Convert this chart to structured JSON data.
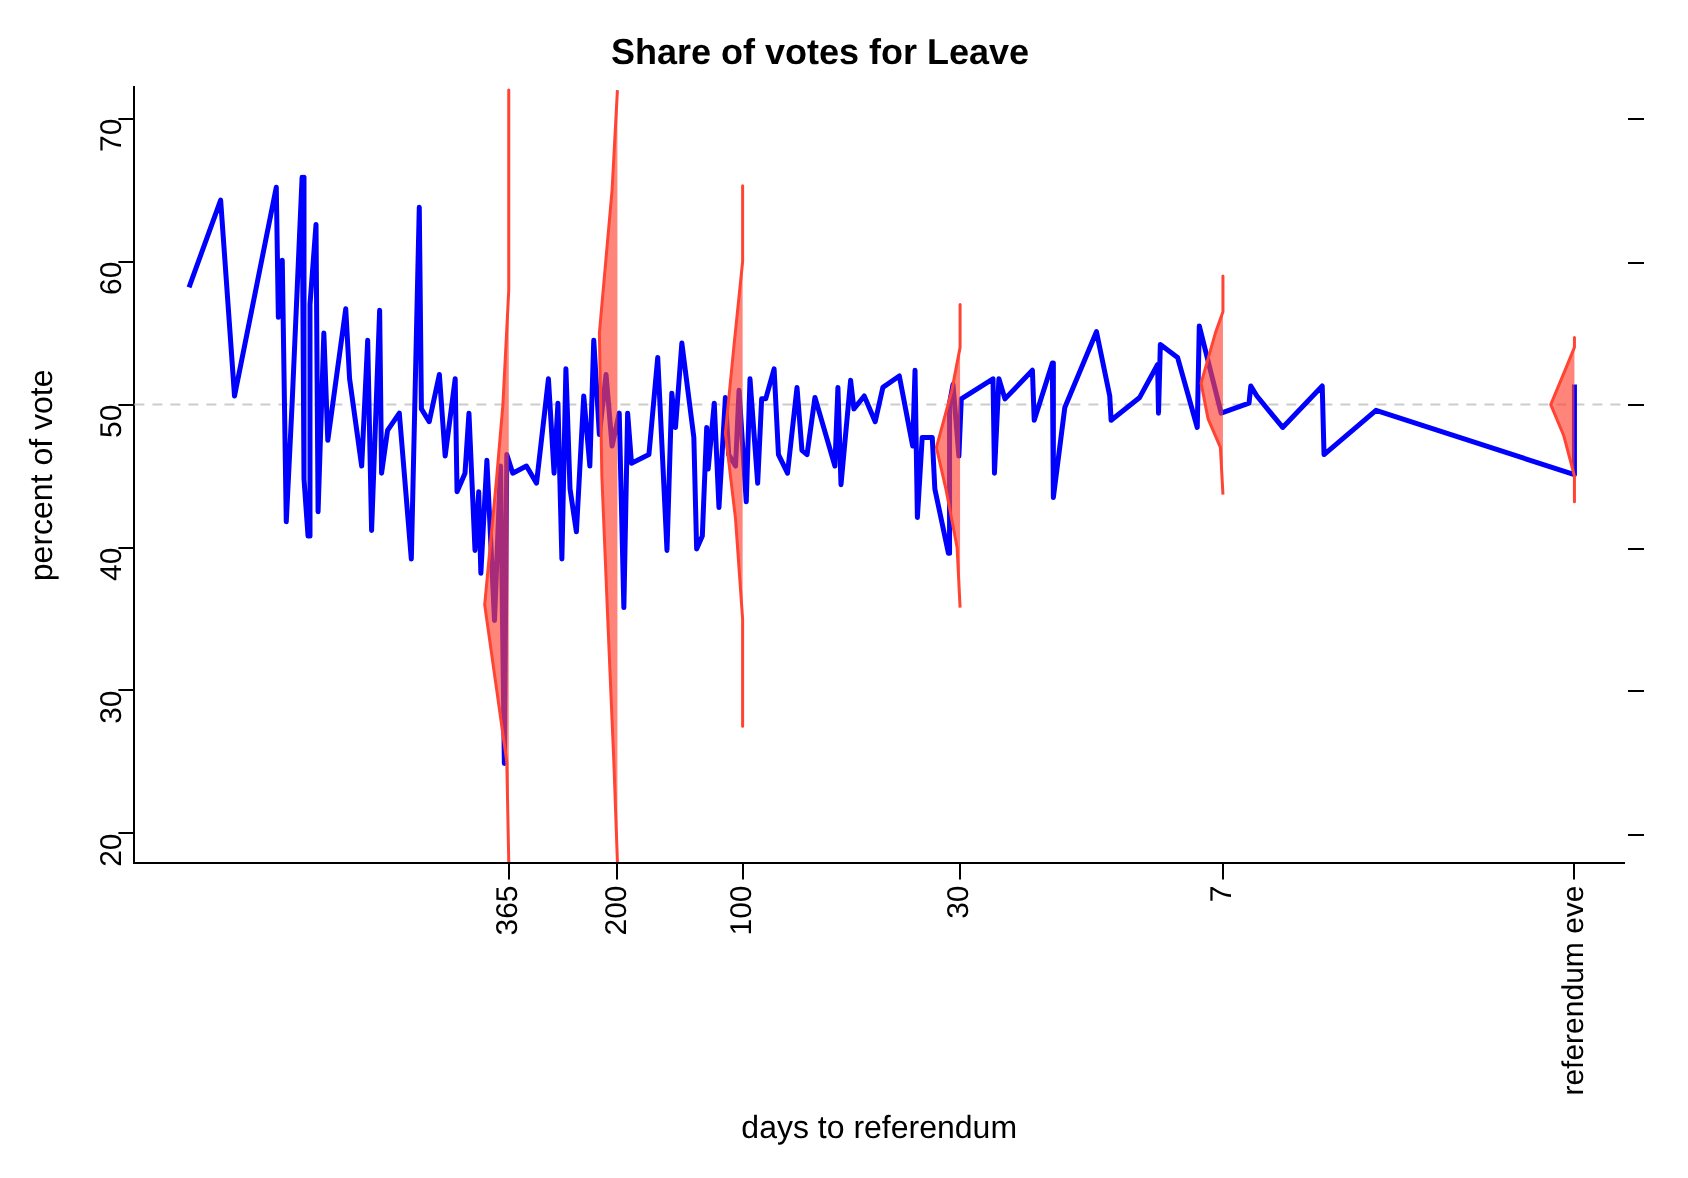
{
  "chart_data": {
    "type": "line",
    "title": "Share of votes for Leave",
    "xlabel": "days to referendum",
    "ylabel": "percent of vote",
    "xlim": [
      2900,
      0.76
    ],
    "xticks": [
      365,
      200,
      100,
      30,
      7,
      {
        "value": 1,
        "label": "referendum eve"
      }
    ],
    "log": "x",
    "ylim": [
      17.9,
      72.2
    ],
    "yticks": [
      20,
      30,
      40,
      50,
      60,
      70
    ],
    "ref_lines": [
      {
        "axis": "y",
        "value": 50,
        "color": "#cccccc",
        "line_style": "dashed"
      }
    ],
    "series": [
      {
        "type": "line",
        "color": "#0000ff",
        "x": [
          2143,
          1799,
          1666,
          1322,
          1307,
          1279,
          1251,
          1211,
          1146,
          1134,
          1109,
          1097,
          1061,
          1049,
          1016,
          994,
          900,
          881,
          824,
          797,
          780,
          746,
          738,
          714,
          669,
          626,
          599,
          592,
          567,
          536,
          519,
          491,
          486,
          465,
          455,
          440,
          431,
          426,
          412,
          395,
          382,
          374,
          369,
          357,
          331,
          313,
          293,
          284,
          278,
          272,
          266,
          260,
          251,
          241,
          233,
          228,
          221,
          213,
          206,
          198,
          193,
          189,
          185,
          168,
          160,
          152,
          148,
          145,
          140,
          131,
          129,
          125,
          122,
          121,
          117,
          114,
          110,
          108,
          104,
          102,
          98,
          96,
          92,
          90,
          88,
          84,
          82,
          78,
          74,
          72,
          70,
          67,
          60,
          59,
          58,
          55,
          54,
          51,
          48,
          46,
          42,
          39,
          38.5,
          38,
          37,
          35,
          34.5,
          32,
          31.8,
          31.2,
          30.2,
          29.8,
          25,
          24.8,
          24.2,
          23.4,
          20.1,
          19.9,
          18,
          17.9,
          16.8,
          14.1,
          13.1,
          13,
          11.1,
          10.05,
          10,
          9.9,
          9,
          8.07,
          7.98,
          7.07,
          6.06,
          6,
          5.8,
          5.03,
          4.04,
          4,
          3,
          1,
          1
        ],
        "values": [
          58.2,
          64.3,
          50.6,
          65.2,
          56.1,
          60.1,
          41.8,
          50.1,
          65.9,
          44.8,
          40.8,
          57.0,
          62.6,
          42.5,
          55.0,
          47.5,
          56.7,
          51.8,
          45.7,
          54.5,
          41.2,
          56.6,
          45.2,
          48.2,
          49.4,
          39.2,
          63.8,
          49.7,
          48.8,
          52.1,
          46.4,
          51.8,
          43.9,
          45.2,
          49.4,
          39.8,
          43.9,
          38.2,
          46.1,
          34.9,
          45.7,
          24.9,
          46.5,
          45.2,
          45.7,
          44.5,
          51.8,
          45.2,
          50.1,
          39.2,
          52.5,
          44.1,
          41.1,
          50.6,
          45.7,
          54.5,
          47.9,
          52.1,
          47.1,
          49.4,
          35.8,
          49.4,
          45.9,
          46.5,
          53.3,
          39.8,
          50.8,
          48.4,
          54.3,
          47.7,
          39.9,
          40.8,
          48.4,
          45.5,
          50.1,
          42.8,
          50.5,
          46.5,
          45.7,
          51.0,
          43.2,
          51.8,
          44.5,
          50.4,
          50.4,
          52.5,
          46.5,
          45.2,
          51.2,
          46.8,
          46.5,
          50.5,
          45.7,
          51.2,
          44.4,
          51.7,
          49.7,
          50.6,
          48.8,
          51.2,
          52.0,
          47.1,
          52.4,
          42.1,
          47.7,
          47.7,
          44.1,
          39.6,
          50.1,
          51.4,
          46.4,
          50.4,
          51.8,
          45.2,
          51.8,
          50.4,
          52.4,
          48.9,
          52.9,
          43.5,
          49.8,
          55.1,
          50.6,
          48.9,
          50.5,
          52.8,
          49.4,
          54.2,
          53.3,
          48.4,
          55.5,
          49.4,
          50.1,
          51.3,
          50.6,
          48.4,
          51.3,
          46.5,
          49.6,
          45.1,
          51.4
        ]
      },
      {
        "type": "area",
        "color": "#ff4433",
        "x": [
          365,
          365,
          377,
          390,
          417,
          390,
          369,
          365
        ],
        "values": [
          72,
          58,
          50,
          45,
          36,
          30,
          25,
          18
        ]
      },
      {
        "type": "area",
        "color": "#ff4433",
        "x": [
          200,
          206,
          221,
          218,
          211,
          204,
          200
        ],
        "values": [
          72,
          65,
          55,
          45,
          35,
          25,
          18
        ]
      },
      {
        "type": "area",
        "color": "#ff4433",
        "x": [
          100,
          100,
          105,
          110,
          104,
          100,
          100
        ],
        "values": [
          65.3,
          60,
          54,
          48,
          42,
          35,
          27.5
        ]
      },
      {
        "type": "area",
        "color": "#ff4433",
        "x": [
          30,
          30,
          31.4,
          34.2,
          32.4,
          30.5,
          30
        ],
        "values": [
          57,
          54,
          51,
          47,
          44,
          40,
          35.8
        ]
      },
      {
        "type": "area",
        "color": "#ff4433",
        "x": [
          7,
          7,
          7.3,
          7.9,
          7.6,
          7.1,
          7
        ],
        "values": [
          59,
          56.5,
          55,
          51.5,
          49,
          47,
          43.7
        ]
      },
      {
        "type": "area",
        "color": "#ff4433",
        "x": [
          1,
          1,
          1.05,
          1.14,
          1.06,
          1,
          1
        ],
        "values": [
          54.7,
          54,
          52.5,
          50,
          47.8,
          45,
          43.2
        ]
      }
    ]
  }
}
